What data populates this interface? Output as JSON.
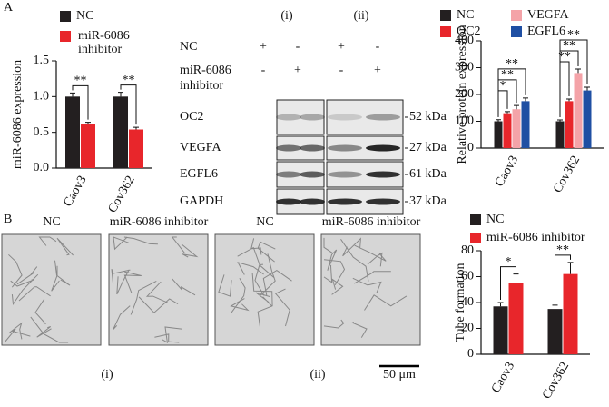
{
  "panel_labels": [
    "A",
    "B"
  ],
  "chart_data": [
    {
      "type": "bar",
      "ylabel": "miR-6086 expression",
      "categories": [
        "Caov3",
        "Cov362"
      ],
      "series": [
        {
          "name": "NC",
          "color": "#231f20",
          "values": [
            1.0,
            1.0
          ],
          "errors": [
            0.05,
            0.06
          ]
        },
        {
          "name": "miR-6086 inhibitor",
          "color": "#e8262b",
          "values": [
            0.61,
            0.54
          ],
          "errors": [
            0.03,
            0.03
          ]
        }
      ],
      "ylim": [
        0,
        1.5
      ],
      "yticks": [
        {
          "value": 0,
          "label": "0.0"
        },
        0.5,
        {
          "value": 1,
          "label": "1.0"
        },
        1.5
      ],
      "annotations": [
        "**",
        "**"
      ]
    },
    {
      "type": "bar",
      "ylabel": "Relative protein expression",
      "categories": [
        "Caov3",
        "Cov362"
      ],
      "series": [
        {
          "name": "NC",
          "color": "#231f20",
          "values": [
            100,
            100
          ],
          "errors": [
            6,
            5
          ]
        },
        {
          "name": "OC2",
          "color": "#e8262b",
          "values": [
            130,
            175
          ],
          "errors": [
            6,
            8
          ]
        },
        {
          "name": "VEGFA",
          "color": "#f4a3a8",
          "values": [
            145,
            280
          ],
          "errors": [
            14,
            15
          ]
        },
        {
          "name": "EGFL6",
          "color": "#1f4fa3",
          "values": [
            175,
            215
          ],
          "errors": [
            12,
            12
          ]
        }
      ],
      "ylim": [
        0,
        400
      ],
      "yticks": [
        0,
        100,
        200,
        300,
        400
      ],
      "annotations": [
        "*",
        "**",
        "**",
        "**",
        "**",
        "**"
      ]
    },
    {
      "type": "bar",
      "ylabel": "Tube formation",
      "categories": [
        "Caov3",
        "Cov362"
      ],
      "series": [
        {
          "name": "NC",
          "color": "#231f20",
          "values": [
            37,
            35
          ],
          "errors": [
            3,
            3
          ]
        },
        {
          "name": "miR-6086 inhibitor",
          "color": "#e8262b",
          "values": [
            55,
            62
          ],
          "errors": [
            7,
            9
          ]
        }
      ],
      "ylim": [
        0,
        80
      ],
      "yticks": [
        0,
        20,
        40,
        60,
        80
      ],
      "annotations": [
        "*",
        "**"
      ]
    }
  ],
  "blot": {
    "columns": [
      "(i)",
      "(ii)"
    ],
    "rows": [
      {
        "label": "NC",
        "signs": [
          "+",
          "-",
          "+",
          "-"
        ]
      },
      {
        "label": "miR-6086 inhibitor",
        "signs": [
          "-",
          "+",
          "-",
          "+"
        ]
      }
    ],
    "proteins": [
      {
        "name": "OC2",
        "size": "52 kDa"
      },
      {
        "name": "VEGFA",
        "size": "27 kDa"
      },
      {
        "name": "EGFL6",
        "size": "61 kDa"
      },
      {
        "name": "GAPDH",
        "size": "37 kDa"
      }
    ]
  },
  "images": {
    "labels": [
      "NC",
      "miR-6086 inhibitor",
      "NC",
      "miR-6086 inhibitor"
    ],
    "groups": [
      "(i)",
      "(ii)"
    ],
    "scale_bar": "50 μm"
  }
}
